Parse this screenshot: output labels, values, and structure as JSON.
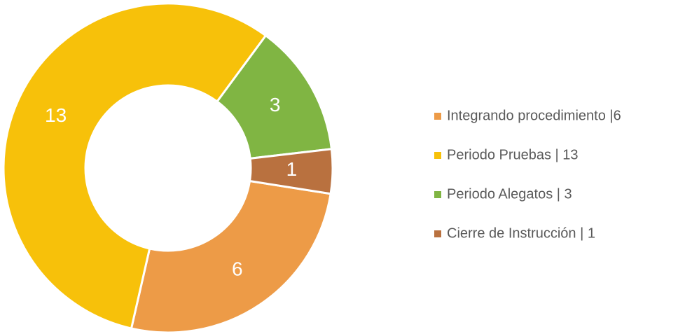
{
  "chart_data": {
    "type": "donut",
    "categories": [
      "Integrando procedimiento |6",
      "Periodo Pruebas | 13",
      "Periodo Alegatos | 3",
      "Cierre de Instrucción | 1"
    ],
    "values": [
      6,
      13,
      3,
      1
    ],
    "colors": [
      "#ed9b47",
      "#f7c10a",
      "#80b543",
      "#b9713f"
    ],
    "legend": "right"
  }
}
